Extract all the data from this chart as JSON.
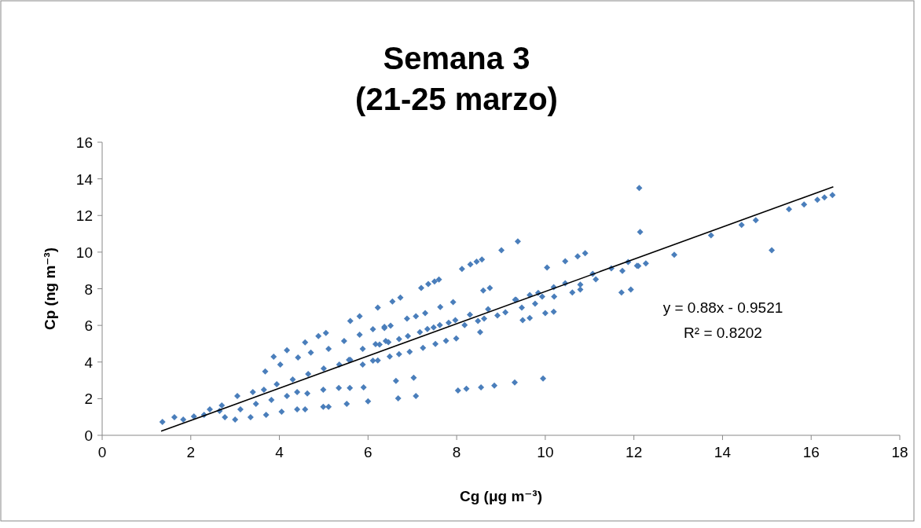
{
  "chart_data": {
    "type": "scatter",
    "title": "Semana 3",
    "subtitle": "(21-25 marzo)",
    "xlabel": "Cg (μg m⁻³)",
    "ylabel": "Cp  (ng m⁻³)",
    "xlim": [
      0,
      18
    ],
    "xticks": [
      0,
      2,
      4,
      6,
      8,
      10,
      12,
      14,
      16,
      18
    ],
    "ylim": [
      0,
      16
    ],
    "yticks": [
      0,
      2,
      4,
      6,
      8,
      10,
      12,
      14,
      16
    ],
    "grid": false,
    "marker": "diamond",
    "annotations": [
      "y = 0.88x - 0.9521",
      "R² = 0.8202"
    ],
    "series": [
      {
        "color": "#4a7ebb",
        "x": [
          1.36,
          1.63,
          1.83,
          2.07,
          2.3,
          2.43,
          2.65,
          2.77,
          3.0,
          3.35,
          3.7,
          4.05,
          4.4,
          4.58,
          4.99,
          5.52,
          6.0,
          2.7,
          3.05,
          3.4,
          3.65,
          3.94,
          4.3,
          4.65,
          5.0,
          5.35,
          5.6,
          3.12,
          3.47,
          3.82,
          4.17,
          4.4,
          4.63,
          4.99,
          5.34,
          5.59,
          5.9,
          5.11,
          3.68,
          4.02,
          4.42,
          4.71,
          5.11,
          5.46,
          5.81,
          6.11,
          6.37,
          3.87,
          4.17,
          4.58,
          4.88,
          5.05,
          5.6,
          5.81,
          6.22,
          5.88,
          6.17,
          6.4,
          5.88,
          6.11,
          5.57,
          6.55,
          6.73,
          7.2,
          7.36,
          7.5,
          7.6,
          8.12,
          8.31,
          8.45,
          8.57,
          9.01,
          9.38,
          8.75,
          8.6,
          7.92,
          7.63,
          7.29,
          7.08,
          6.88,
          6.51,
          6.37,
          10.45,
          10.73,
          10.9,
          10.04,
          11.87,
          12.1,
          11.74,
          11.49,
          11.14,
          11.07,
          10.45,
          10.79,
          10.79,
          10.61,
          11.72,
          9.34,
          10.2,
          10.19,
          9.93,
          9.84,
          9.65,
          9.32,
          9.77,
          10.19,
          10.0,
          9.47,
          9.65,
          9.49,
          9.1,
          8.92,
          8.71,
          8.62,
          8.53,
          8.48,
          8.3,
          8.18,
          7.97,
          7.82,
          7.62,
          7.48,
          7.34,
          7.17,
          6.9,
          6.7,
          6.46,
          6.26,
          7.99,
          7.76,
          7.52,
          7.24,
          6.94,
          6.7,
          6.49,
          6.22,
          6.63,
          7.03,
          6.68,
          7.08,
          8.03,
          8.22,
          8.55,
          8.85,
          9.31,
          9.95,
          12.12,
          12.14,
          11.93,
          12.07,
          12.27,
          12.91,
          13.74,
          14.43,
          14.75,
          15.11,
          15.5,
          15.84,
          16.14,
          16.3,
          16.48
        ],
        "values": [
          0.73,
          0.99,
          0.86,
          1.03,
          1.12,
          1.42,
          1.33,
          0.99,
          0.86,
          0.99,
          1.12,
          1.29,
          1.42,
          1.42,
          1.55,
          1.72,
          1.85,
          1.63,
          2.15,
          2.36,
          2.49,
          2.79,
          3.05,
          3.35,
          3.65,
          3.86,
          4.12,
          1.42,
          1.72,
          1.93,
          2.15,
          2.36,
          2.28,
          2.49,
          2.58,
          2.58,
          2.62,
          1.55,
          3.48,
          3.86,
          4.25,
          4.51,
          4.72,
          5.15,
          5.49,
          5.79,
          5.92,
          4.29,
          4.64,
          5.07,
          5.42,
          5.59,
          6.24,
          6.5,
          6.97,
          4.72,
          4.98,
          5.15,
          3.86,
          4.08,
          4.12,
          7.3,
          7.52,
          8.04,
          8.26,
          8.4,
          8.5,
          9.08,
          9.33,
          9.48,
          9.6,
          10.1,
          10.58,
          8.04,
          7.9,
          7.27,
          7.0,
          6.67,
          6.5,
          6.37,
          5.98,
          5.85,
          9.5,
          9.77,
          9.94,
          9.16,
          9.46,
          9.24,
          8.98,
          9.12,
          8.52,
          8.82,
          8.3,
          8.22,
          7.96,
          7.8,
          7.8,
          7.4,
          7.57,
          8.09,
          7.57,
          7.78,
          7.66,
          7.4,
          7.18,
          6.75,
          6.67,
          6.97,
          6.4,
          6.28,
          6.71,
          6.54,
          6.88,
          6.37,
          5.63,
          6.24,
          6.58,
          6.02,
          6.28,
          6.15,
          6.02,
          5.89,
          5.8,
          5.63,
          5.42,
          5.25,
          5.08,
          4.95,
          5.29,
          5.16,
          4.99,
          4.77,
          4.56,
          4.43,
          4.3,
          4.09,
          2.97,
          3.14,
          2.02,
          2.15,
          2.45,
          2.54,
          2.62,
          2.71,
          2.88,
          3.1,
          13.5,
          11.1,
          7.96,
          9.25,
          9.38,
          9.85,
          10.92,
          11.48,
          11.74,
          10.1,
          12.34,
          12.6,
          12.86,
          12.99,
          13.12
        ]
      },
      {
        "type": "line",
        "color": "#000000",
        "marker": "none",
        "x": [
          1.33,
          16.5
        ],
        "values": [
          0.22,
          13.57
        ]
      }
    ]
  }
}
